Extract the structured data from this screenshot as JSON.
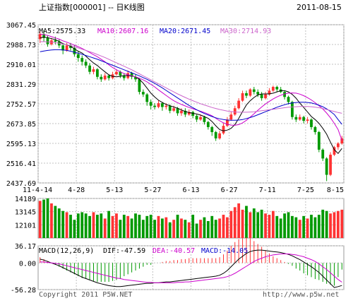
{
  "header": {
    "title": "上证指数[000001] -- 日K线图",
    "date": "2011-08-15"
  },
  "colors": {
    "up": "#ff3333",
    "down": "#009900",
    "ma5": "#000000",
    "ma10": "#cc00cc",
    "ma20": "#0000cc",
    "ma30": "#cc66cc",
    "dif": "#000000",
    "dea": "#cc00cc",
    "grid": "#c0c0c0"
  },
  "legend": {
    "ma5": "MA5:2575.33",
    "ma10": "MA10:2607.16",
    "ma20": "MA20:2671.45",
    "ma30": "MA30:2714.93",
    "macd_params": "MACD(12,26,9)",
    "dif": "DIF:-47.59",
    "dea": "DEA:-40.57",
    "macd": "MACD:-14.05"
  },
  "footer": {
    "copyright": "Copyright 2011 P5W.NET",
    "url": "http://www.p5w.net"
  },
  "chart_data": [
    {
      "type": "candlestick",
      "y_ticks": [
        "3067.45",
        "2988.73",
        "2910.01",
        "2831.29",
        "2752.57",
        "2673.85",
        "2595.13",
        "2516.41",
        "2437.69"
      ],
      "ylim": [
        2437.69,
        3067.45
      ],
      "x_ticks": [
        "11-4-14",
        "4-28",
        "5-13",
        "5-27",
        "6-13",
        "6-27",
        "7-11",
        "7-25",
        "8-15"
      ],
      "candles": [
        [
          3010,
          3030,
          2995,
          3040
        ],
        [
          3030,
          3015,
          3000,
          3045
        ],
        [
          3015,
          2990,
          2980,
          3025
        ],
        [
          2990,
          3005,
          2985,
          3015
        ],
        [
          3005,
          3000,
          2990,
          3020
        ],
        [
          3000,
          2985,
          2975,
          3010
        ],
        [
          2985,
          2965,
          2950,
          2995
        ],
        [
          2965,
          2985,
          2960,
          2995
        ],
        [
          2985,
          2975,
          2965,
          2995
        ],
        [
          2975,
          2950,
          2940,
          2985
        ],
        [
          2950,
          2935,
          2920,
          2960
        ],
        [
          2935,
          2920,
          2905,
          2945
        ],
        [
          2920,
          2905,
          2895,
          2930
        ],
        [
          2905,
          2880,
          2870,
          2915
        ],
        [
          2880,
          2890,
          2870,
          2900
        ],
        [
          2890,
          2860,
          2850,
          2895
        ],
        [
          2860,
          2850,
          2840,
          2870
        ],
        [
          2850,
          2865,
          2845,
          2875
        ],
        [
          2865,
          2855,
          2845,
          2870
        ],
        [
          2855,
          2870,
          2850,
          2880
        ],
        [
          2870,
          2880,
          2865,
          2890
        ],
        [
          2880,
          2865,
          2855,
          2885
        ],
        [
          2865,
          2855,
          2845,
          2875
        ],
        [
          2855,
          2875,
          2850,
          2885
        ],
        [
          2875,
          2860,
          2850,
          2880
        ],
        [
          2860,
          2850,
          2840,
          2870
        ],
        [
          2850,
          2800,
          2790,
          2855
        ],
        [
          2800,
          2790,
          2780,
          2810
        ],
        [
          2790,
          2760,
          2745,
          2795
        ],
        [
          2760,
          2745,
          2730,
          2770
        ],
        [
          2745,
          2740,
          2730,
          2755
        ],
        [
          2740,
          2755,
          2735,
          2765
        ],
        [
          2755,
          2740,
          2725,
          2760
        ],
        [
          2740,
          2745,
          2730,
          2755
        ],
        [
          2745,
          2725,
          2715,
          2750
        ],
        [
          2725,
          2735,
          2720,
          2745
        ],
        [
          2735,
          2715,
          2705,
          2740
        ],
        [
          2715,
          2725,
          2705,
          2735
        ],
        [
          2725,
          2710,
          2700,
          2735
        ],
        [
          2710,
          2720,
          2705,
          2730
        ],
        [
          2720,
          2705,
          2695,
          2725
        ],
        [
          2705,
          2690,
          2680,
          2710
        ],
        [
          2690,
          2700,
          2685,
          2710
        ],
        [
          2700,
          2680,
          2670,
          2705
        ],
        [
          2680,
          2660,
          2650,
          2685
        ],
        [
          2660,
          2640,
          2625,
          2665
        ],
        [
          2640,
          2615,
          2605,
          2645
        ],
        [
          2615,
          2635,
          2610,
          2645
        ],
        [
          2635,
          2665,
          2630,
          2675
        ],
        [
          2665,
          2690,
          2660,
          2700
        ],
        [
          2690,
          2710,
          2685,
          2720
        ],
        [
          2710,
          2735,
          2705,
          2745
        ],
        [
          2735,
          2765,
          2730,
          2775
        ],
        [
          2765,
          2795,
          2760,
          2805
        ],
        [
          2795,
          2785,
          2775,
          2805
        ],
        [
          2785,
          2810,
          2780,
          2815
        ],
        [
          2810,
          2800,
          2790,
          2820
        ],
        [
          2800,
          2790,
          2780,
          2810
        ],
        [
          2790,
          2775,
          2765,
          2800
        ],
        [
          2775,
          2790,
          2770,
          2800
        ],
        [
          2790,
          2805,
          2785,
          2815
        ],
        [
          2805,
          2820,
          2800,
          2825
        ],
        [
          2820,
          2810,
          2800,
          2825
        ],
        [
          2810,
          2800,
          2795,
          2820
        ],
        [
          2800,
          2780,
          2770,
          2805
        ],
        [
          2780,
          2760,
          2750,
          2785
        ],
        [
          2760,
          2700,
          2690,
          2765
        ],
        [
          2700,
          2690,
          2680,
          2710
        ],
        [
          2690,
          2700,
          2685,
          2710
        ],
        [
          2700,
          2685,
          2675,
          2705
        ],
        [
          2685,
          2690,
          2675,
          2700
        ],
        [
          2690,
          2660,
          2650,
          2695
        ],
        [
          2660,
          2640,
          2630,
          2665
        ],
        [
          2640,
          2570,
          2560,
          2645
        ],
        [
          2570,
          2535,
          2525,
          2575
        ],
        [
          2535,
          2470,
          2445,
          2540
        ],
        [
          2470,
          2550,
          2465,
          2560
        ],
        [
          2550,
          2580,
          2545,
          2585
        ],
        [
          2580,
          2595,
          2570,
          2600
        ],
        [
          2595,
          2615,
          2590,
          2625
        ]
      ],
      "ma_series": [
        {
          "name": "MA5",
          "values": [
            3015,
            3018,
            3016,
            3012,
            3008,
            3001,
            2992,
            2988,
            2982,
            2972,
            2962,
            2955,
            2942,
            2928,
            2915,
            2905,
            2892,
            2880,
            2868,
            2862,
            2860,
            2862,
            2865,
            2865,
            2864,
            2860,
            2850,
            2835,
            2815,
            2795,
            2780,
            2767,
            2758,
            2750,
            2745,
            2740,
            2735,
            2728,
            2722,
            2718,
            2715,
            2712,
            2708,
            2702,
            2695,
            2682,
            2665,
            2650,
            2645,
            2648,
            2655,
            2670,
            2695,
            2722,
            2748,
            2765,
            2778,
            2788,
            2792,
            2792,
            2792,
            2795,
            2800,
            2805,
            2805,
            2800,
            2790,
            2775,
            2755,
            2738,
            2720,
            2702,
            2690,
            2675,
            2655,
            2632,
            2600,
            2570,
            2555,
            2575
          ]
        },
        {
          "name": "MA10",
          "values": [
            3030,
            3028,
            3025,
            3020,
            3015,
            3010,
            3003,
            2998,
            2992,
            2986,
            2980,
            2973,
            2965,
            2957,
            2948,
            2940,
            2930,
            2920,
            2908,
            2897,
            2888,
            2880,
            2873,
            2868,
            2864,
            2860,
            2855,
            2848,
            2840,
            2830,
            2820,
            2808,
            2797,
            2786,
            2775,
            2765,
            2757,
            2750,
            2744,
            2738,
            2733,
            2728,
            2723,
            2718,
            2712,
            2705,
            2695,
            2685,
            2677,
            2671,
            2668,
            2667,
            2670,
            2677,
            2687,
            2700,
            2713,
            2727,
            2740,
            2752,
            2762,
            2772,
            2780,
            2787,
            2792,
            2795,
            2796,
            2795,
            2791,
            2785,
            2777,
            2768,
            2757,
            2745,
            2732,
            2716,
            2697,
            2675,
            2650,
            2607
          ]
        },
        {
          "name": "MA20",
          "values": [
            2960,
            2963,
            2965,
            2967,
            2968,
            2968,
            2967,
            2965,
            2962,
            2958,
            2954,
            2950,
            2945,
            2940,
            2935,
            2930,
            2924,
            2918,
            2912,
            2906,
            2900,
            2894,
            2888,
            2882,
            2876,
            2870,
            2864,
            2857,
            2850,
            2842,
            2834,
            2825,
            2816,
            2806,
            2796,
            2786,
            2776,
            2766,
            2756,
            2746,
            2737,
            2729,
            2721,
            2714,
            2708,
            2702,
            2697,
            2693,
            2690,
            2688,
            2687,
            2687,
            2688,
            2690,
            2694,
            2698,
            2703,
            2709,
            2715,
            2721,
            2727,
            2733,
            2739,
            2744,
            2749,
            2753,
            2756,
            2758,
            2759,
            2759,
            2758,
            2756,
            2752,
            2747,
            2741,
            2733,
            2722,
            2710,
            2690,
            2671
          ]
        },
        {
          "name": "MA30",
          "values": [
            3000,
            3000,
            2999,
            2998,
            2996,
            2994,
            2991,
            2988,
            2984,
            2980,
            2975,
            2970,
            2965,
            2960,
            2955,
            2949,
            2943,
            2937,
            2930,
            2923,
            2916,
            2909,
            2902,
            2895,
            2888,
            2880,
            2872,
            2864,
            2856,
            2848,
            2840,
            2832,
            2824,
            2816,
            2808,
            2800,
            2792,
            2785,
            2778,
            2771,
            2765,
            2759,
            2753,
            2748,
            2743,
            2738,
            2734,
            2730,
            2727,
            2724,
            2722,
            2720,
            2719,
            2719,
            2719,
            2720,
            2721,
            2723,
            2725,
            2727,
            2729,
            2731,
            2733,
            2735,
            2737,
            2739,
            2740,
            2741,
            2742,
            2742,
            2742,
            2741,
            2739,
            2737,
            2734,
            2730,
            2726,
            2722,
            2718,
            2715
          ]
        }
      ]
    },
    {
      "type": "bar",
      "name": "volume",
      "y_ticks": [
        "14189",
        "13145",
        "12101"
      ],
      "ylim": [
        11057,
        14189
      ],
      "values": [
        14000,
        14100,
        14189,
        13800,
        13600,
        13400,
        13200,
        13100,
        12900,
        12500,
        13000,
        13100,
        13000,
        12800,
        13100,
        12900,
        13000,
        12600,
        13200,
        12800,
        13000,
        12500,
        12900,
        12800,
        12600,
        13000,
        12900,
        12500,
        12800,
        12900,
        12500,
        12800,
        12600,
        12700,
        12300,
        12500,
        12900,
        12600,
        12500,
        12300,
        12900,
        12200,
        12500,
        12700,
        12400,
        12800,
        12500,
        12600,
        12900,
        12700,
        13200,
        13500,
        13800,
        13300,
        13600,
        13100,
        13400,
        13100,
        13300,
        13000,
        12900,
        13200,
        12800,
        12600,
        13000,
        13100,
        12800,
        12700,
        12500,
        12800,
        12600,
        12900,
        12700,
        12900,
        13300,
        13200,
        13000,
        13100,
        13200,
        13300
      ]
    },
    {
      "type": "line",
      "name": "MACD",
      "y_ticks": [
        "36.17",
        "0.00",
        "-56.28"
      ],
      "ylim": [
        -56.28,
        36.17
      ],
      "dif": [
        8,
        6,
        3,
        0,
        -3,
        -6,
        -10,
        -14,
        -18,
        -22,
        -26,
        -30,
        -33,
        -36,
        -39,
        -42,
        -44,
        -46,
        -48,
        -49,
        -50,
        -50,
        -49,
        -48,
        -47,
        -46,
        -45,
        -44,
        -43,
        -43,
        -42,
        -42,
        -41,
        -40,
        -40,
        -39,
        -38,
        -37,
        -36,
        -35,
        -34,
        -33,
        -32,
        -31,
        -30,
        -29,
        -28,
        -26,
        -22,
        -16,
        -8,
        0,
        8,
        14,
        20,
        24,
        26,
        27,
        27,
        26,
        25,
        24,
        23,
        22,
        20,
        18,
        15,
        11,
        7,
        2,
        -3,
        -8,
        -14,
        -20,
        -28,
        -36,
        -44,
        -52,
        -50,
        -47.59
      ],
      "dea": [
        2,
        2,
        1,
        0,
        -1,
        -2,
        -4,
        -6,
        -8,
        -10,
        -12,
        -14,
        -16,
        -18,
        -20,
        -22,
        -24,
        -26,
        -28,
        -30,
        -32,
        -33,
        -35,
        -36,
        -37,
        -38,
        -39,
        -40,
        -41,
        -41,
        -42,
        -42,
        -42,
        -42,
        -42,
        -42,
        -41,
        -41,
        -40,
        -40,
        -39,
        -38,
        -37,
        -36,
        -35,
        -34,
        -33,
        -32,
        -31,
        -29,
        -26,
        -22,
        -17,
        -12,
        -7,
        -2,
        3,
        7,
        10,
        13,
        15,
        17,
        18,
        19,
        19,
        19,
        18,
        17,
        15,
        13,
        10,
        7,
        3,
        -2,
        -8,
        -14,
        -21,
        -28,
        -35,
        -40.57
      ]
    }
  ]
}
